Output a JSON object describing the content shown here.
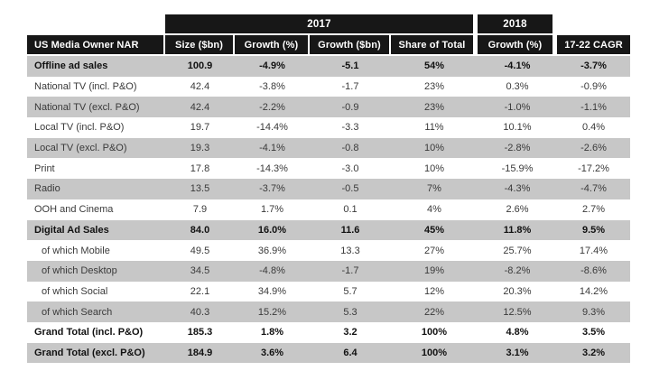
{
  "colors": {
    "header_bg": "#171717",
    "header_text": "#ffffff",
    "row_alt_bg": "#c7c7c7",
    "row_bg": "#ffffff",
    "text": "#3a3a3a"
  },
  "chart_data": {
    "type": "table",
    "title": "US Media Owner NAR",
    "col_groups": [
      {
        "label": "2017",
        "spans_columns": [
          "Size ($bn)",
          "Growth (%)",
          "Growth ($bn)",
          "Share of Total"
        ]
      },
      {
        "label": "2018",
        "spans_columns": [
          "Growth (%)"
        ]
      }
    ],
    "columns": [
      "US Media Owner NAR",
      "Size ($bn)",
      "Growth (%)",
      "Growth ($bn)",
      "Share of Total",
      "Growth (%)",
      "17-22 CAGR"
    ],
    "rows": [
      {
        "label": "Offline ad sales",
        "bold": true,
        "indent": false,
        "values": [
          "100.9",
          "-4.9%",
          "-5.1",
          "54%",
          "-4.1%",
          "-3.7%"
        ]
      },
      {
        "label": "National TV (incl. P&O)",
        "bold": false,
        "indent": false,
        "values": [
          "42.4",
          "-3.8%",
          "-1.7",
          "23%",
          "0.3%",
          "-0.9%"
        ]
      },
      {
        "label": "National TV (excl. P&O)",
        "bold": false,
        "indent": false,
        "values": [
          "42.4",
          "-2.2%",
          "-0.9",
          "23%",
          "-1.0%",
          "-1.1%"
        ]
      },
      {
        "label": "Local TV (incl. P&O)",
        "bold": false,
        "indent": false,
        "values": [
          "19.7",
          "-14.4%",
          "-3.3",
          "11%",
          "10.1%",
          "0.4%"
        ]
      },
      {
        "label": "Local TV (excl. P&O)",
        "bold": false,
        "indent": false,
        "values": [
          "19.3",
          "-4.1%",
          "-0.8",
          "10%",
          "-2.8%",
          "-2.6%"
        ]
      },
      {
        "label": "Print",
        "bold": false,
        "indent": false,
        "values": [
          "17.8",
          "-14.3%",
          "-3.0",
          "10%",
          "-15.9%",
          "-17.2%"
        ]
      },
      {
        "label": "Radio",
        "bold": false,
        "indent": false,
        "values": [
          "13.5",
          "-3.7%",
          "-0.5",
          "7%",
          "-4.3%",
          "-4.7%"
        ]
      },
      {
        "label": "OOH and Cinema",
        "bold": false,
        "indent": false,
        "values": [
          "7.9",
          "1.7%",
          "0.1",
          "4%",
          "2.6%",
          "2.7%"
        ]
      },
      {
        "label": "Digital Ad Sales",
        "bold": true,
        "indent": false,
        "values": [
          "84.0",
          "16.0%",
          "11.6",
          "45%",
          "11.8%",
          "9.5%"
        ]
      },
      {
        "label": "of which Mobile",
        "bold": false,
        "indent": true,
        "values": [
          "49.5",
          "36.9%",
          "13.3",
          "27%",
          "25.7%",
          "17.4%"
        ]
      },
      {
        "label": "of which Desktop",
        "bold": false,
        "indent": true,
        "values": [
          "34.5",
          "-4.8%",
          "-1.7",
          "19%",
          "-8.2%",
          "-8.6%"
        ]
      },
      {
        "label": "of which Social",
        "bold": false,
        "indent": true,
        "values": [
          "22.1",
          "34.9%",
          "5.7",
          "12%",
          "20.3%",
          "14.2%"
        ]
      },
      {
        "label": "of which Search",
        "bold": false,
        "indent": true,
        "values": [
          "40.3",
          "15.2%",
          "5.3",
          "22%",
          "12.5%",
          "9.3%"
        ]
      },
      {
        "label": "Grand Total (incl. P&O)",
        "bold": true,
        "indent": false,
        "values": [
          "185.3",
          "1.8%",
          "3.2",
          "100%",
          "4.8%",
          "3.5%"
        ]
      },
      {
        "label": "Grand Total (excl. P&O)",
        "bold": true,
        "indent": false,
        "values": [
          "184.9",
          "3.6%",
          "6.4",
          "100%",
          "3.1%",
          "3.2%"
        ]
      }
    ]
  }
}
